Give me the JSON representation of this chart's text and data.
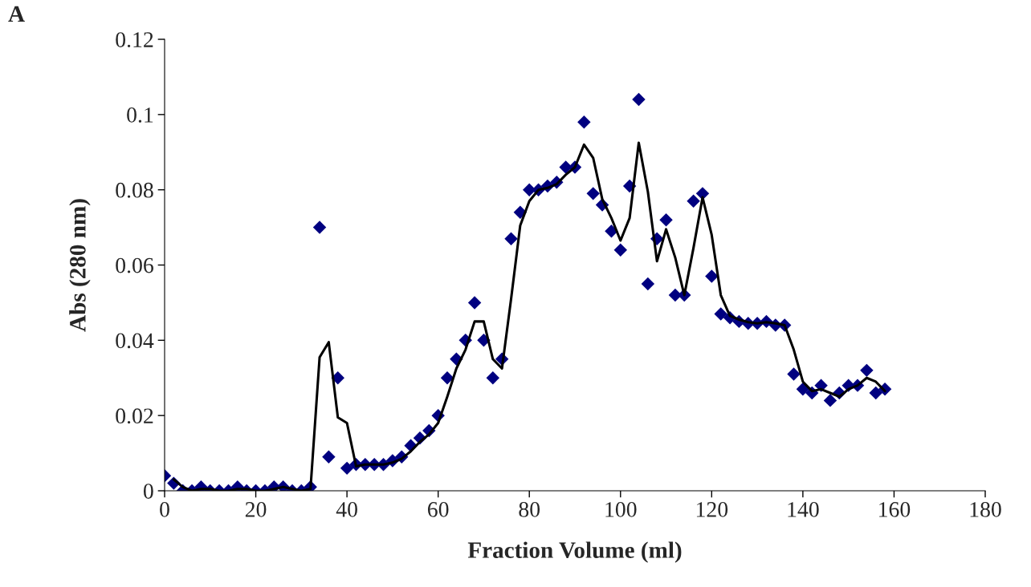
{
  "chart_data": {
    "type": "scatter",
    "title": "A",
    "xlabel": "Fraction Volume (ml)",
    "ylabel": "Abs (280 nm)",
    "xlim": [
      0,
      180
    ],
    "xticks": [
      0,
      20,
      40,
      60,
      80,
      100,
      120,
      140,
      160,
      180
    ],
    "ylim": [
      0,
      0.12
    ],
    "yticks": [
      0,
      0.02,
      0.04,
      0.06,
      0.08,
      0.1,
      0.12
    ],
    "grid": false,
    "legend": false,
    "series": [
      {
        "color": "#000080",
        "marker": "diamond",
        "x": [
          0,
          2,
          4,
          6,
          8,
          10,
          12,
          14,
          16,
          18,
          20,
          22,
          24,
          26,
          28,
          30,
          32,
          34,
          36,
          38,
          40,
          42,
          44,
          46,
          48,
          50,
          52,
          54,
          56,
          58,
          60,
          62,
          64,
          66,
          68,
          70,
          72,
          74,
          76,
          78,
          80,
          82,
          84,
          86,
          88,
          90,
          92,
          94,
          96,
          98,
          100,
          102,
          104,
          106,
          108,
          110,
          112,
          114,
          116,
          118,
          120,
          122,
          124,
          126,
          128,
          130,
          132,
          134,
          136,
          138,
          140,
          142,
          144,
          146,
          148,
          150,
          152,
          154,
          156,
          158
        ],
        "values": [
          0.004,
          0.002,
          0,
          0,
          0.001,
          0,
          0,
          0,
          0.001,
          0,
          0,
          0,
          0.001,
          0.001,
          0,
          0,
          0.001,
          0.07,
          0.009,
          0.03,
          0.006,
          0.007,
          0.007,
          0.007,
          0.007,
          0.008,
          0.009,
          0.012,
          0.014,
          0.016,
          0.02,
          0.03,
          0.035,
          0.04,
          0.05,
          0.04,
          0.03,
          0.035,
          0.067,
          0.074,
          0.08,
          0.08,
          0.081,
          0.082,
          0.086,
          0.086,
          0.098,
          0.079,
          0.076,
          0.069,
          0.064,
          0.081,
          0.104,
          0.055,
          0.067,
          0.072,
          0.052,
          0.052,
          0.077,
          0.079,
          0.057,
          0.047,
          0.046,
          0.045,
          0.0445,
          0.0445,
          0.045,
          0.044,
          0.044,
          0.031,
          0.027,
          0.026,
          0.028,
          0.024,
          0.026,
          0.028,
          0.028,
          0.032,
          0.026,
          0.027
        ]
      },
      {
        "type": "line",
        "color": "#000000",
        "line_style": "solid",
        "marker": "none",
        "x": [
          2,
          4,
          6,
          8,
          10,
          12,
          14,
          16,
          18,
          20,
          22,
          24,
          26,
          28,
          30,
          32,
          34,
          36,
          38,
          40,
          42,
          44,
          46,
          48,
          50,
          52,
          54,
          56,
          58,
          60,
          62,
          64,
          66,
          68,
          70,
          72,
          74,
          76,
          78,
          80,
          82,
          84,
          86,
          88,
          90,
          92,
          94,
          96,
          98,
          100,
          102,
          104,
          106,
          108,
          110,
          112,
          114,
          116,
          118,
          120,
          122,
          124,
          126,
          128,
          130,
          132,
          134,
          136,
          138,
          140,
          142,
          144,
          146,
          148,
          150,
          152,
          154,
          156,
          158
        ],
        "values": [
          0.003,
          0.001,
          0,
          0.0005,
          0.0005,
          0,
          0,
          0.0005,
          0.0005,
          0,
          0,
          0.0005,
          0.001,
          0.0005,
          0,
          0.0005,
          0.0355,
          0.0395,
          0.0195,
          0.018,
          0.0065,
          0.007,
          0.007,
          0.007,
          0.0075,
          0.0085,
          0.0105,
          0.013,
          0.015,
          0.018,
          0.025,
          0.0325,
          0.0375,
          0.045,
          0.045,
          0.035,
          0.0325,
          0.051,
          0.0705,
          0.077,
          0.08,
          0.0805,
          0.0815,
          0.084,
          0.086,
          0.092,
          0.0885,
          0.0775,
          0.0725,
          0.0665,
          0.0725,
          0.0925,
          0.0795,
          0.061,
          0.0695,
          0.062,
          0.052,
          0.0645,
          0.078,
          0.068,
          0.052,
          0.0465,
          0.0455,
          0.0448,
          0.0445,
          0.0448,
          0.0445,
          0.044,
          0.0375,
          0.029,
          0.0265,
          0.027,
          0.026,
          0.025,
          0.027,
          0.028,
          0.03,
          0.029,
          0.0265
        ]
      }
    ]
  }
}
